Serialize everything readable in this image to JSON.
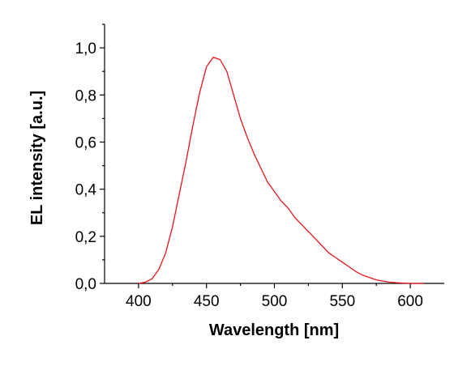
{
  "chart_data": {
    "type": "line",
    "xlabel": "Wavelength [nm]",
    "ylabel": "EL intensity [a.u.]",
    "xlim": [
      375,
      625
    ],
    "ylim": [
      0,
      1.1
    ],
    "xticks": [
      400,
      450,
      500,
      550,
      600
    ],
    "xminorticks": [
      425,
      475,
      525,
      575
    ],
    "yticks": [
      {
        "value": 0,
        "label": "0,0"
      },
      {
        "value": 0.2,
        "label": "0,2"
      },
      {
        "value": 0.4,
        "label": "0,4"
      },
      {
        "value": 0.6,
        "label": "0,6"
      },
      {
        "value": 0.8,
        "label": "0,8"
      },
      {
        "value": 1.0,
        "label": "1,0"
      }
    ],
    "yminorticks": [
      0.1,
      0.3,
      0.5,
      0.7,
      0.9,
      1.1
    ],
    "series": [
      {
        "color": "#e8141b",
        "x": [
          400,
          405,
          410,
          415,
          420,
          425,
          430,
          435,
          440,
          445,
          450,
          455,
          460,
          465,
          470,
          475,
          480,
          485,
          490,
          495,
          500,
          505,
          510,
          515,
          520,
          525,
          530,
          535,
          540,
          545,
          550,
          555,
          560,
          565,
          570,
          575,
          580,
          585,
          590,
          595,
          600,
          605,
          610
        ],
        "values": [
          0,
          0.005,
          0.02,
          0.06,
          0.13,
          0.24,
          0.38,
          0.52,
          0.67,
          0.81,
          0.92,
          0.96,
          0.95,
          0.9,
          0.8,
          0.7,
          0.62,
          0.55,
          0.49,
          0.43,
          0.39,
          0.35,
          0.32,
          0.28,
          0.25,
          0.22,
          0.19,
          0.16,
          0.13,
          0.11,
          0.09,
          0.07,
          0.05,
          0.035,
          0.025,
          0.015,
          0.01,
          0.005,
          0.003,
          0.001,
          0,
          0,
          0
        ]
      }
    ]
  }
}
